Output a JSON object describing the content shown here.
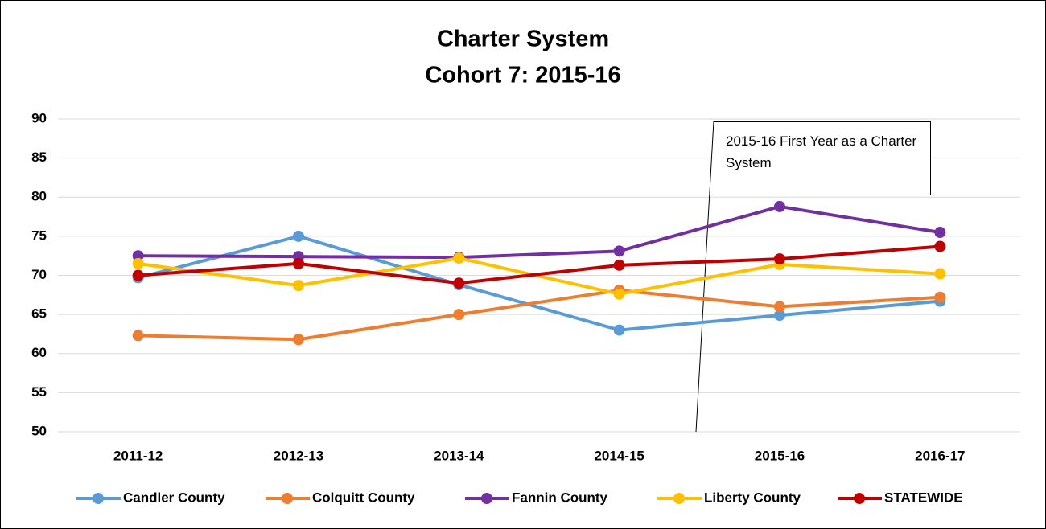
{
  "chart_data": {
    "type": "line",
    "title": [
      "Charter System",
      "Cohort 7: 2015-16"
    ],
    "annotation": "2015-16 First Year as a Charter System",
    "categories": [
      "2011-12",
      "2012-13",
      "2013-14",
      "2014-15",
      "2015-16",
      "2016-17"
    ],
    "series": [
      {
        "name": "Candler County",
        "color": "#5b9bd5",
        "values": [
          69.7,
          75.0,
          68.8,
          63.0,
          64.9,
          66.7
        ]
      },
      {
        "name": "Colquitt County",
        "color": "#ed7d31",
        "values": [
          62.3,
          61.8,
          65.0,
          68.1,
          66.0,
          67.2
        ]
      },
      {
        "name": "Fannin County",
        "color": "#7030a0",
        "values": [
          72.5,
          72.4,
          72.3,
          73.1,
          78.8,
          75.5
        ]
      },
      {
        "name": "Liberty County",
        "color": "#ffc000",
        "values": [
          71.5,
          68.7,
          72.2,
          67.6,
          71.4,
          70.2
        ]
      },
      {
        "name": "STATEWIDE",
        "color": "#c00000",
        "values": [
          70.0,
          71.5,
          69.0,
          71.3,
          72.1,
          73.7
        ]
      }
    ],
    "ylim": [
      50,
      90
    ],
    "yticks": [
      50,
      55,
      60,
      65,
      70,
      75,
      80,
      85,
      90
    ],
    "grid": true,
    "legend": "bottom"
  }
}
